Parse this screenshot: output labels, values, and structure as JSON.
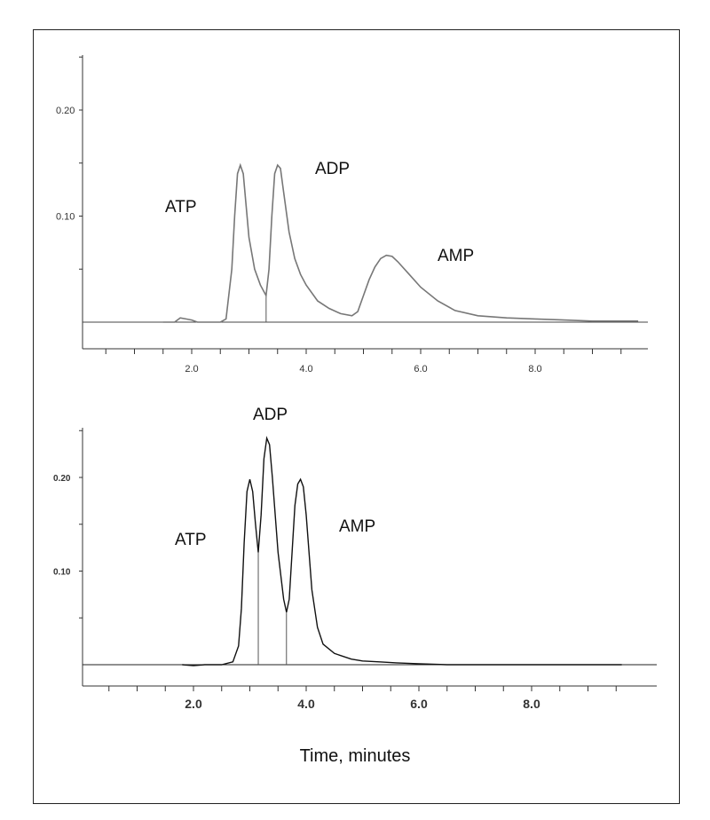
{
  "colors": {
    "top_trace": "#777777",
    "bottom_trace": "#111111",
    "axis": "#333333",
    "frame": "#222222"
  },
  "chart_data": [
    {
      "type": "line",
      "xlabel": "",
      "ylabel": "",
      "xlim": [
        0.0,
        9.8
      ],
      "ylim": [
        -0.02,
        0.26
      ],
      "x_ticks": [
        "2.0",
        "4.0",
        "6.0",
        "8.0"
      ],
      "y_ticks": [
        "0.10",
        "0.20"
      ],
      "grid": false,
      "peaks": [
        {
          "name": "ATP",
          "time": 2.85,
          "height": 0.148
        },
        {
          "name": "ADP",
          "time": 3.55,
          "height": 0.148
        },
        {
          "name": "AMP",
          "time": 5.45,
          "height": 0.063
        }
      ],
      "series": [
        {
          "x": [
            1.5,
            1.7,
            1.8,
            1.9,
            2.0,
            2.1,
            2.3,
            2.5,
            2.6,
            2.7,
            2.75,
            2.8,
            2.85,
            2.9,
            2.95,
            3.0,
            3.1,
            3.2,
            3.3,
            3.35,
            3.4,
            3.45,
            3.5,
            3.55,
            3.6,
            3.7,
            3.8,
            3.9,
            4.0,
            4.2,
            4.4,
            4.6,
            4.8,
            4.9,
            5.0,
            5.1,
            5.2,
            5.3,
            5.4,
            5.5,
            5.6,
            5.8,
            6.0,
            6.3,
            6.6,
            7.0,
            7.5,
            8.0,
            8.5,
            9.0,
            9.8
          ],
          "y": [
            0.0,
            0.0,
            0.004,
            0.003,
            0.002,
            0.0,
            0.0,
            0.0,
            0.003,
            0.05,
            0.1,
            0.14,
            0.148,
            0.14,
            0.11,
            0.08,
            0.05,
            0.035,
            0.025,
            0.05,
            0.1,
            0.14,
            0.148,
            0.145,
            0.125,
            0.085,
            0.06,
            0.045,
            0.035,
            0.02,
            0.013,
            0.008,
            0.006,
            0.01,
            0.025,
            0.04,
            0.052,
            0.06,
            0.063,
            0.062,
            0.057,
            0.045,
            0.033,
            0.02,
            0.011,
            0.006,
            0.004,
            0.003,
            0.002,
            0.001,
            0.001
          ]
        }
      ]
    },
    {
      "type": "line",
      "xlabel": "Time, minutes",
      "ylabel": "",
      "xlim": [
        0.0,
        9.6
      ],
      "ylim": [
        -0.025,
        0.26
      ],
      "x_ticks": [
        "2.0",
        "4.0",
        "6.0",
        "8.0"
      ],
      "y_ticks": [
        "0.10",
        "0.20"
      ],
      "grid": false,
      "peaks": [
        {
          "name": "ATP",
          "time": 3.0,
          "height": 0.198
        },
        {
          "name": "ADP",
          "time": 3.3,
          "height": 0.242
        },
        {
          "name": "AMP",
          "time": 3.9,
          "height": 0.198
        }
      ],
      "series": [
        {
          "x": [
            1.8,
            2.0,
            2.2,
            2.5,
            2.7,
            2.8,
            2.85,
            2.9,
            2.95,
            3.0,
            3.05,
            3.1,
            3.15,
            3.2,
            3.25,
            3.3,
            3.35,
            3.4,
            3.5,
            3.6,
            3.65,
            3.7,
            3.75,
            3.8,
            3.85,
            3.9,
            3.95,
            4.0,
            4.1,
            4.2,
            4.3,
            4.5,
            4.8,
            5.0,
            5.3,
            5.6,
            6.0,
            6.5,
            7.0,
            8.0,
            9.0,
            9.6
          ],
          "y": [
            0.0,
            -0.001,
            0.0,
            0.0,
            0.003,
            0.02,
            0.06,
            0.13,
            0.185,
            0.198,
            0.185,
            0.15,
            0.12,
            0.16,
            0.22,
            0.242,
            0.235,
            0.2,
            0.12,
            0.07,
            0.056,
            0.07,
            0.12,
            0.17,
            0.193,
            0.198,
            0.19,
            0.16,
            0.08,
            0.04,
            0.022,
            0.012,
            0.006,
            0.004,
            0.003,
            0.002,
            0.001,
            0.0,
            0.0,
            0.0,
            0.0,
            0.0
          ]
        }
      ]
    }
  ]
}
